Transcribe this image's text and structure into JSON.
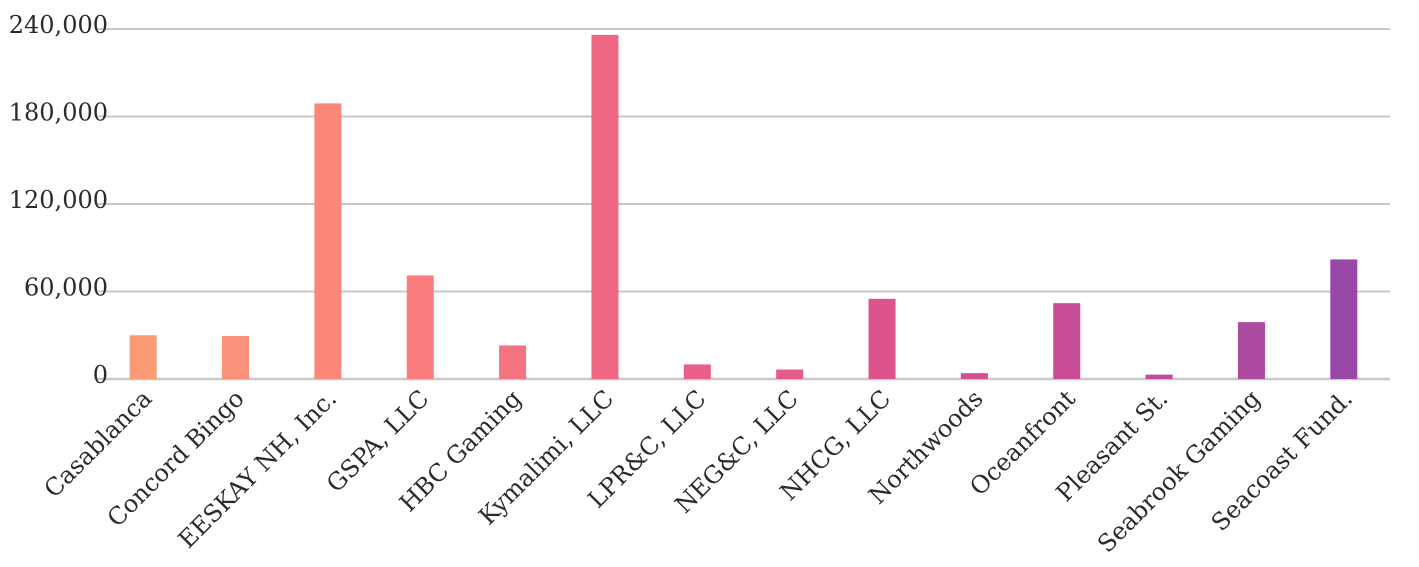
{
  "chart_data": {
    "type": "bar",
    "title": "",
    "xlabel": "",
    "ylabel": "",
    "categories": [
      "Casablanca",
      "Concord Bingo",
      "EESKAY NH, Inc.",
      "GSPA, LLC",
      "HBC Gaming",
      "Kymalimi, LLC",
      "LPR&C, LLC",
      "NEG&C, LLC",
      "NHCG, LLC",
      "Northwoods",
      "Oceanfront",
      "Pleasant St.",
      "Seabrook Gaming",
      "Seacoast Fund."
    ],
    "values": [
      30000,
      29500,
      189000,
      71000,
      23000,
      236000,
      10000,
      6500,
      55000,
      4000,
      52000,
      3000,
      39000,
      82000
    ],
    "colors": [
      "#fc9a76",
      "#fc9179",
      "#fb887b",
      "#f97d7e",
      "#f47380",
      "#ee6883",
      "#e95f87",
      "#e45a89",
      "#dd548c",
      "#d44f91",
      "#c84d96",
      "#bc4c9b",
      "#ac4aa0",
      "#9a48a7"
    ],
    "ylim": [
      0,
      240000
    ],
    "yticks": [
      0,
      60000,
      120000,
      180000,
      240000
    ],
    "ytick_labels": [
      "0",
      "60,000",
      "120,000",
      "180,000",
      "240,000"
    ],
    "grid": true,
    "legend": "none"
  }
}
